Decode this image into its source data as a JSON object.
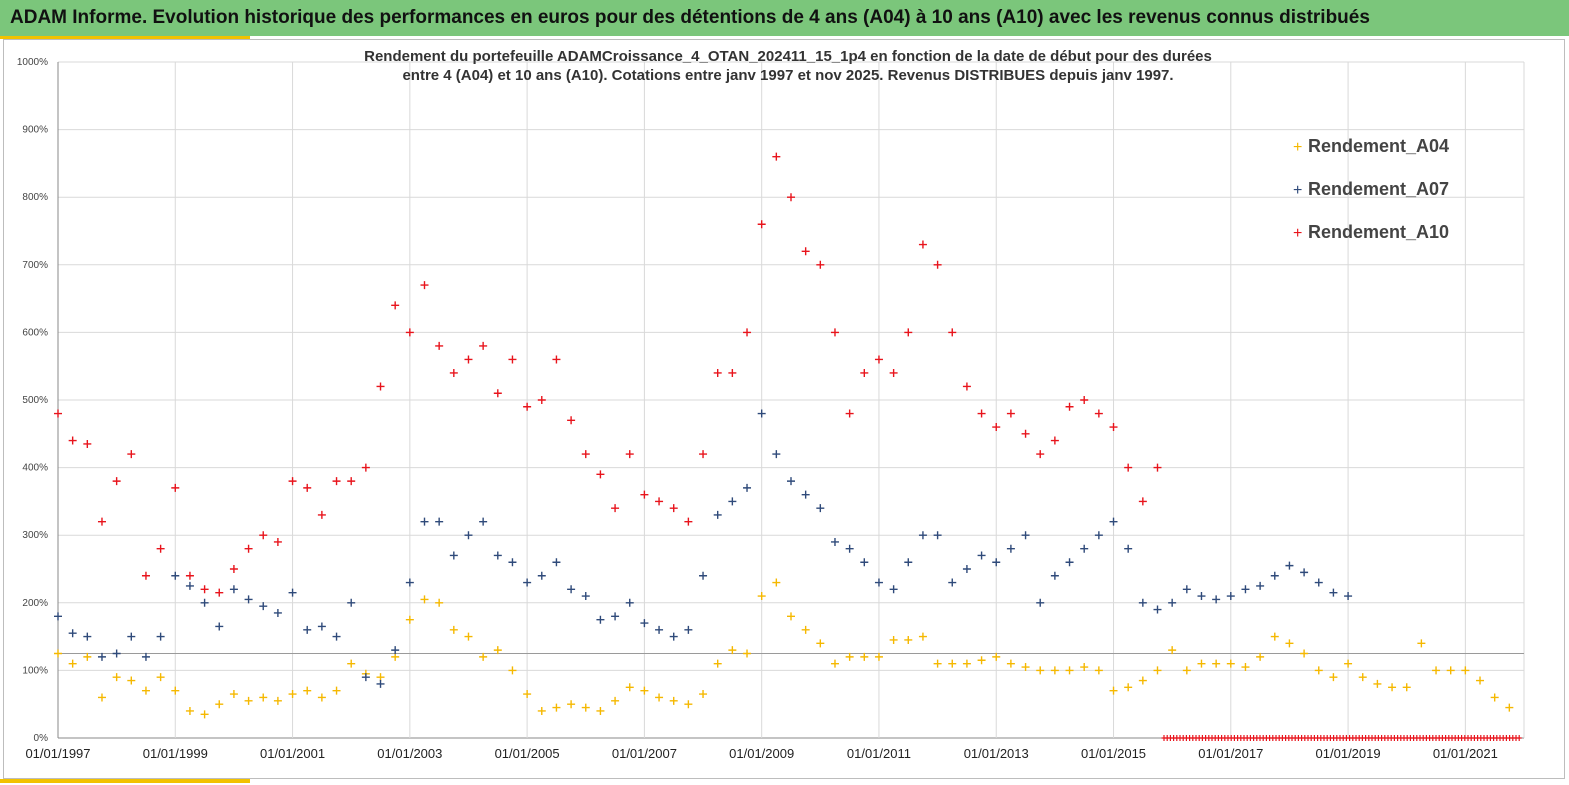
{
  "header": {
    "title": "ADAM Informe. Evolution historique des performances en euros pour des détentions de 4 ans (A04) à 10 ans (A10) avec les revenus connus distribués"
  },
  "colors": {
    "a04": "#f5b800",
    "a07": "#2f4a7a",
    "a10": "#e8141c",
    "banner": "#7bc67b",
    "accent": "#f2c200"
  },
  "chart_data": {
    "type": "scatter",
    "title": [
      "Rendement du portefeuille ADAMCroissance_4_OTAN_202411_15_1p4  en fonction de la date de début pour des durées",
      "entre 4 (A04) et 10 ans (A10). Cotations entre janv 1997 et nov 2025. Revenus DISTRIBUES depuis janv 1997."
    ],
    "xlabel": "",
    "ylabel": "",
    "x_range": [
      1997.0,
      2022.0
    ],
    "ylim": [
      0,
      1000
    ],
    "y_ticks": [
      "0%",
      "100%",
      "200%",
      "300%",
      "400%",
      "500%",
      "600%",
      "700%",
      "800%",
      "900%",
      "1000%"
    ],
    "x_ticks": [
      "01/01/1997",
      "01/01/1999",
      "01/01/2001",
      "01/01/2003",
      "01/01/2005",
      "01/01/2007",
      "01/01/2009",
      "01/01/2011",
      "01/01/2013",
      "01/01/2015",
      "01/01/2017",
      "01/01/2019",
      "01/01/2021"
    ],
    "x_tick_years": [
      1997,
      1999,
      2001,
      2003,
      2005,
      2007,
      2009,
      2011,
      2013,
      2015,
      2017,
      2019,
      2021
    ],
    "reference_line_y": 125,
    "legend_position": "top-right",
    "series": [
      {
        "name": "Rendement_A04",
        "x": [
          1997.0,
          1997.25,
          1997.5,
          1997.75,
          1998.0,
          1998.25,
          1998.5,
          1998.75,
          1999.0,
          1999.25,
          1999.5,
          1999.75,
          2000.0,
          2000.25,
          2000.5,
          2000.75,
          2001.0,
          2001.25,
          2001.5,
          2001.75,
          2002.0,
          2002.25,
          2002.5,
          2002.75,
          2003.0,
          2003.25,
          2003.5,
          2003.75,
          2004.0,
          2004.25,
          2004.5,
          2004.75,
          2005.0,
          2005.25,
          2005.5,
          2005.75,
          2006.0,
          2006.25,
          2006.5,
          2006.75,
          2007.0,
          2007.25,
          2007.5,
          2007.75,
          2008.0,
          2008.25,
          2008.5,
          2008.75,
          2009.0,
          2009.25,
          2009.5,
          2009.75,
          2010.0,
          2010.25,
          2010.5,
          2010.75,
          2011.0,
          2011.25,
          2011.5,
          2011.75,
          2012.0,
          2012.25,
          2012.5,
          2012.75,
          2013.0,
          2013.25,
          2013.5,
          2013.75,
          2014.0,
          2014.25,
          2014.5,
          2014.75,
          2015.0,
          2015.25,
          2015.5,
          2015.75,
          2016.0,
          2016.25,
          2016.5,
          2016.75,
          2017.0,
          2017.25,
          2017.5,
          2017.75,
          2018.0,
          2018.25,
          2018.5,
          2018.75,
          2019.0,
          2019.25,
          2019.5,
          2019.75,
          2020.0,
          2020.25,
          2020.5,
          2020.75,
          2021.0,
          2021.25,
          2021.5,
          2021.75
        ],
        "values": [
          125,
          110,
          120,
          60,
          90,
          85,
          70,
          90,
          70,
          40,
          35,
          50,
          65,
          55,
          60,
          55,
          65,
          70,
          60,
          70,
          110,
          95,
          90,
          120,
          175,
          205,
          200,
          160,
          150,
          120,
          130,
          100,
          65,
          40,
          45,
          50,
          45,
          40,
          55,
          75,
          70,
          60,
          55,
          50,
          65,
          110,
          130,
          125,
          210,
          230,
          180,
          160,
          140,
          110,
          120,
          120,
          120,
          145,
          145,
          150,
          110,
          110,
          110,
          115,
          120,
          110,
          105,
          100,
          100,
          100,
          105,
          100,
          70,
          75,
          85,
          100,
          130,
          100,
          110,
          110,
          110,
          105,
          120,
          150,
          140,
          125,
          100,
          90,
          110,
          90,
          80,
          75,
          75,
          140,
          100,
          100,
          100,
          85,
          60,
          45
        ]
      },
      {
        "name": "Rendement_A07",
        "x": [
          1997.0,
          1997.25,
          1997.5,
          1997.75,
          1998.0,
          1998.25,
          1998.5,
          1998.75,
          1999.0,
          1999.25,
          1999.5,
          1999.75,
          2000.0,
          2000.25,
          2000.5,
          2000.75,
          2001.0,
          2001.25,
          2001.5,
          2001.75,
          2002.0,
          2002.25,
          2002.5,
          2002.75,
          2003.0,
          2003.25,
          2003.5,
          2003.75,
          2004.0,
          2004.25,
          2004.5,
          2004.75,
          2005.0,
          2005.25,
          2005.5,
          2005.75,
          2006.0,
          2006.25,
          2006.5,
          2006.75,
          2007.0,
          2007.25,
          2007.5,
          2007.75,
          2008.0,
          2008.25,
          2008.5,
          2008.75,
          2009.0,
          2009.25,
          2009.5,
          2009.75,
          2010.0,
          2010.25,
          2010.5,
          2010.75,
          2011.0,
          2011.25,
          2011.5,
          2011.75,
          2012.0,
          2012.25,
          2012.5,
          2012.75,
          2013.0,
          2013.25,
          2013.5,
          2013.75,
          2014.0,
          2014.25,
          2014.5,
          2014.75,
          2015.0,
          2015.25,
          2015.5,
          2015.75,
          2016.0,
          2016.25,
          2016.5,
          2016.75,
          2017.0,
          2017.25,
          2017.5,
          2017.75,
          2018.0,
          2018.25,
          2018.5,
          2018.75,
          2019.0
        ],
        "values": [
          180,
          155,
          150,
          120,
          125,
          150,
          120,
          150,
          240,
          225,
          200,
          165,
          220,
          205,
          195,
          185,
          215,
          160,
          165,
          150,
          200,
          90,
          80,
          130,
          230,
          320,
          320,
          270,
          300,
          320,
          270,
          260,
          230,
          240,
          260,
          220,
          210,
          175,
          180,
          200,
          170,
          160,
          150,
          160,
          240,
          330,
          350,
          370,
          480,
          420,
          380,
          360,
          340,
          290,
          280,
          260,
          230,
          220,
          260,
          300,
          300,
          230,
          250,
          270,
          260,
          280,
          300,
          200,
          240,
          260,
          280,
          300,
          320,
          280,
          200,
          190,
          200,
          220,
          210,
          205,
          210,
          220,
          225,
          240,
          255,
          245,
          230,
          215,
          210
        ]
      },
      {
        "name": "Rendement_A10",
        "x": [
          1997.0,
          1997.25,
          1997.5,
          1997.75,
          1998.0,
          1998.25,
          1998.5,
          1998.75,
          1999.0,
          1999.25,
          1999.5,
          1999.75,
          2000.0,
          2000.25,
          2000.5,
          2000.75,
          2001.0,
          2001.25,
          2001.5,
          2001.75,
          2002.0,
          2002.25,
          2002.5,
          2002.75,
          2003.0,
          2003.25,
          2003.5,
          2003.75,
          2004.0,
          2004.25,
          2004.5,
          2004.75,
          2005.0,
          2005.25,
          2005.5,
          2005.75,
          2006.0,
          2006.25,
          2006.5,
          2006.75,
          2007.0,
          2007.25,
          2007.5,
          2007.75,
          2008.0,
          2008.25,
          2008.5,
          2008.75,
          2009.0,
          2009.25,
          2009.5,
          2009.75,
          2010.0,
          2010.25,
          2010.5,
          2010.75,
          2011.0,
          2011.25,
          2011.5,
          2011.75,
          2012.0,
          2012.25,
          2012.5,
          2012.75,
          2013.0,
          2013.25,
          2013.5,
          2013.75,
          2014.0,
          2014.25,
          2014.5,
          2014.75,
          2015.0,
          2015.25,
          2015.5,
          2015.75
        ],
        "values": [
          480,
          440,
          435,
          320,
          380,
          420,
          240,
          280,
          370,
          240,
          220,
          215,
          250,
          280,
          300,
          290,
          380,
          370,
          330,
          380,
          380,
          400,
          520,
          640,
          600,
          670,
          580,
          540,
          560,
          580,
          510,
          560,
          490,
          500,
          560,
          470,
          420,
          390,
          340,
          420,
          360,
          350,
          340,
          320,
          420,
          540,
          540,
          600,
          760,
          860,
          800,
          720,
          700,
          600,
          480,
          540,
          560,
          540,
          600,
          730,
          700,
          600,
          520,
          480,
          460,
          480,
          450,
          420,
          440,
          490,
          500,
          480,
          460,
          400,
          350,
          400
        ]
      }
    ]
  }
}
